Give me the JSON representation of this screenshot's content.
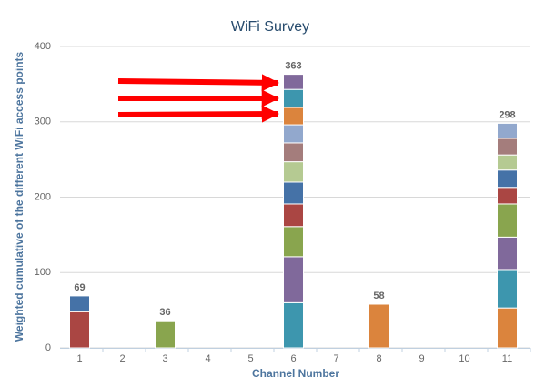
{
  "chart_data": {
    "type": "stacked-bar",
    "title": "WiFi Survey",
    "x_label": "Channel Number",
    "y_label": "Weighted cumulative of the different WiFi access points",
    "categories": [
      "1",
      "2",
      "3",
      "4",
      "5",
      "6",
      "7",
      "8",
      "9",
      "10",
      "11"
    ],
    "stacks": [
      [
        {
          "value": 48,
          "color": "#aa4643"
        },
        {
          "value": 21,
          "color": "#4572a7"
        }
      ],
      [],
      [
        {
          "value": 36,
          "color": "#89a54e"
        }
      ],
      [],
      [],
      [
        {
          "value": 60,
          "color": "#3d96ae"
        },
        {
          "value": 61,
          "color": "#80699b"
        },
        {
          "value": 40,
          "color": "#89a54e"
        },
        {
          "value": 30,
          "color": "#aa4643"
        },
        {
          "value": 29,
          "color": "#4572a7"
        },
        {
          "value": 27,
          "color": "#b5ca92"
        },
        {
          "value": 25,
          "color": "#a47d7c"
        },
        {
          "value": 24,
          "color": "#92a8cd"
        },
        {
          "value": 23,
          "color": "#db843d"
        },
        {
          "value": 24,
          "color": "#3d96ae"
        },
        {
          "value": 20,
          "color": "#80699b"
        }
      ],
      [],
      [
        {
          "value": 58,
          "color": "#db843d"
        }
      ],
      [],
      [],
      [
        {
          "value": 53,
          "color": "#db843d"
        },
        {
          "value": 51,
          "color": "#3d96ae"
        },
        {
          "value": 43,
          "color": "#80699b"
        },
        {
          "value": 44,
          "color": "#89a54e"
        },
        {
          "value": 22,
          "color": "#aa4643"
        },
        {
          "value": 23,
          "color": "#4572a7"
        },
        {
          "value": 20,
          "color": "#b5ca92"
        },
        {
          "value": 22,
          "color": "#a47d7c"
        },
        {
          "value": 20,
          "color": "#92a8cd"
        }
      ]
    ],
    "totals": [
      69,
      null,
      36,
      null,
      null,
      363,
      null,
      58,
      null,
      null,
      298
    ],
    "ylim": [
      0,
      400
    ],
    "yticks": [
      0,
      100,
      200,
      300,
      400
    ],
    "grid": true
  }
}
